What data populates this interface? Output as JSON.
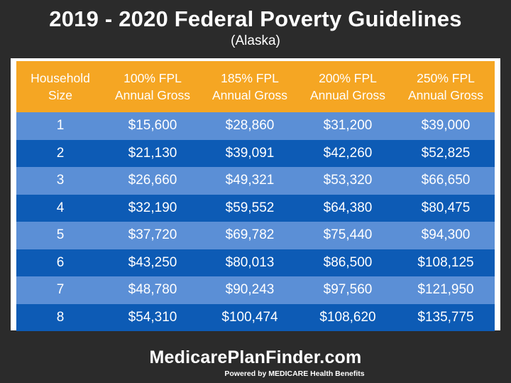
{
  "header": {
    "title": "2019 - 2020 Federal Poverty Guidelines",
    "subtitle": "(Alaska)"
  },
  "table": {
    "columns": [
      "Household\nSize",
      "100% FPL\nAnnual Gross",
      "185% FPL\nAnnual Gross",
      "200% FPL\nAnnual Gross",
      "250% FPL\nAnnual Gross"
    ],
    "rows": [
      [
        "1",
        "$15,600",
        "$28,860",
        "$31,200",
        "$39,000"
      ],
      [
        "2",
        "$21,130",
        "$39,091",
        "$42,260",
        "$52,825"
      ],
      [
        "3",
        "$26,660",
        "$49,321",
        "$53,320",
        "$66,650"
      ],
      [
        "4",
        "$32,190",
        "$59,552",
        "$64,380",
        "$80,475"
      ],
      [
        "5",
        "$37,720",
        "$69,782",
        "$75,440",
        "$94,300"
      ],
      [
        "6",
        "$43,250",
        "$80,013",
        "$86,500",
        "$108,125"
      ],
      [
        "7",
        "$48,780",
        "$90,243",
        "$97,560",
        "$121,950"
      ],
      [
        "8",
        "$54,310",
        "$100,474",
        "$108,620",
        "$135,775"
      ]
    ]
  },
  "footer": {
    "brand": "MedicarePlanFinder.com",
    "tagline": "Powered by MEDICARE Health Benefits"
  },
  "colors": {
    "background": "#2b2b2b",
    "header_row": "#f5a623",
    "row_light": "#5b8fd6",
    "row_dark": "#0d5bb5"
  }
}
